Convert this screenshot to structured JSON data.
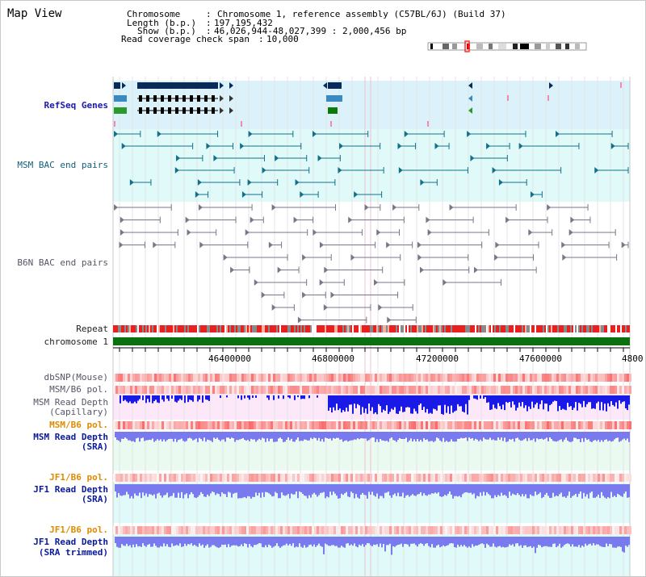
{
  "title": "Map View",
  "info": {
    "chromosome_label": "Chromosome",
    "chromosome_value": "Chromosome 1, reference assembly (C57BL/6J) (Build 37)",
    "length_label": "Length (b.p.)",
    "length_value": "197,195,432",
    "show_label": "Show (b.p.)",
    "show_value": "46,026,944-48,027,399 : 2,000,456 bp",
    "coverage_label": "Read coverage check span",
    "coverage_value": "10,000"
  },
  "tracks": {
    "refseq": "RefSeq Genes",
    "msm_bac": "MSM BAC end pairs",
    "b6n_bac": "B6N BAC end pairs",
    "repeat": "Repeat",
    "chromosome": "chromosome 1",
    "dbsnp": "dbSNP(Mouse)",
    "msm_b6_pol_1": "MSM/B6 pol.",
    "msm_depth_cap_1": "MSM Read Depth",
    "msm_depth_cap_2": "(Capillary)",
    "msm_b6_pol_2": "MSM/B6 pol.",
    "msm_depth_sra_1": "MSM Read Depth",
    "msm_depth_sra_2": "(SRA)",
    "jf1_b6_pol_1": "JF1/B6 pol.",
    "jf1_depth_sra_1": "JF1 Read Depth",
    "jf1_depth_sra_2": "(SRA)",
    "jf1_b6_pol_2": "JF1/B6 pol.",
    "jf1_depth_trim_1": "JF1 Read Depth",
    "jf1_depth_trim_2": "(SRA trimmed)"
  },
  "axis": {
    "ticks": [
      "46400000",
      "46800000",
      "47200000",
      "47600000",
      "4800"
    ]
  },
  "colors": {
    "refseq_bg": "#dcf2fa",
    "msm_bg": "#e0fafa",
    "pink_bg": "#fce8f8",
    "green_bg": "#eafaf0",
    "cyan_bg": "#e0fafa",
    "repeat_red": "#e82020",
    "chrom_green": "#0a7010",
    "depth_blue": "#1a1ae6",
    "depth_light": "#7a7aef"
  }
}
